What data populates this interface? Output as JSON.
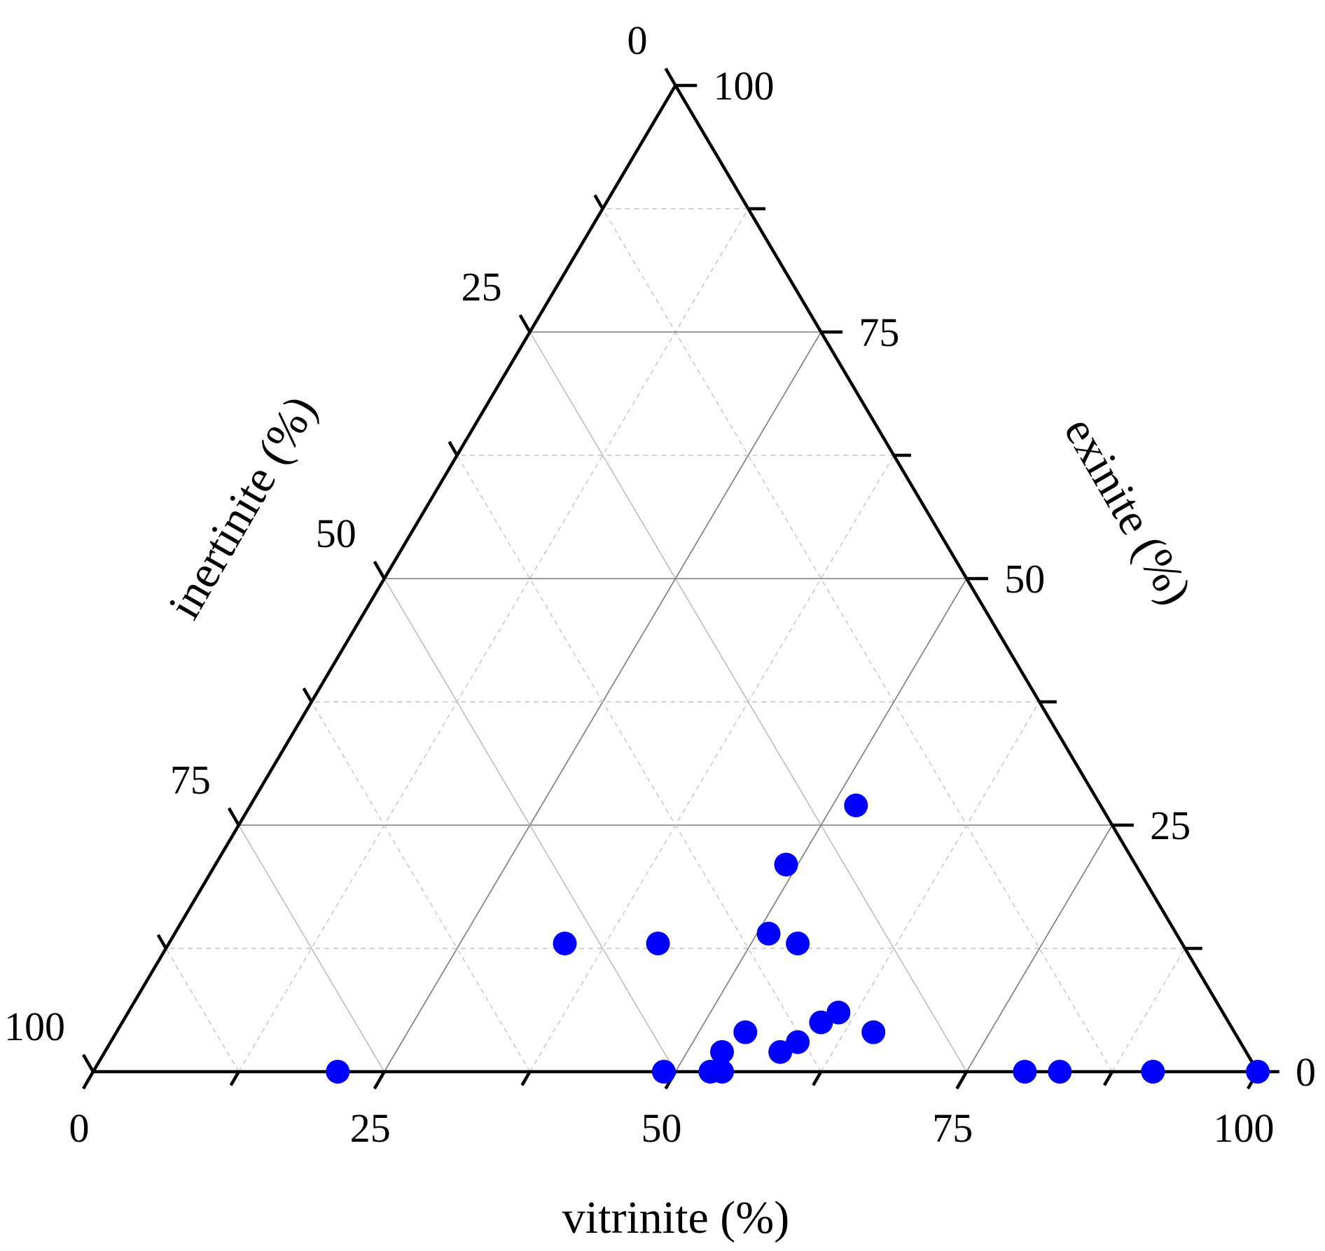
{
  "chart_data": {
    "type": "scatter",
    "subtype": "ternary",
    "axes": {
      "vitrinite": {
        "label": "vitrinite (%)",
        "ticks": [
          "0",
          "25",
          "50",
          "75",
          "100"
        ],
        "range": [
          0,
          100
        ],
        "side": "bottom"
      },
      "inertinite": {
        "label": "inertinite (%)",
        "ticks": [
          "0",
          "25",
          "50",
          "75",
          "100"
        ],
        "range": [
          0,
          100
        ],
        "side": "left"
      },
      "exinite": {
        "label": "exinite (%)",
        "ticks": [
          "0",
          "25",
          "50",
          "75",
          "100"
        ],
        "range": [
          0,
          100
        ],
        "side": "right"
      }
    },
    "grid": true,
    "legend": "none",
    "marker_color": "#0000ff",
    "points": [
      {
        "vitrinite": 21,
        "inertinite": 79,
        "exinite": 0
      },
      {
        "vitrinite": 49,
        "inertinite": 51,
        "exinite": 0
      },
      {
        "vitrinite": 53,
        "inertinite": 47,
        "exinite": 0
      },
      {
        "vitrinite": 54,
        "inertinite": 46,
        "exinite": 0
      },
      {
        "vitrinite": 80,
        "inertinite": 20,
        "exinite": 0
      },
      {
        "vitrinite": 83,
        "inertinite": 17,
        "exinite": 0
      },
      {
        "vitrinite": 91,
        "inertinite": 9,
        "exinite": 0
      },
      {
        "vitrinite": 100,
        "inertinite": 0,
        "exinite": 0
      },
      {
        "vitrinite": 53,
        "inertinite": 45,
        "exinite": 2
      },
      {
        "vitrinite": 54,
        "inertinite": 42,
        "exinite": 4
      },
      {
        "vitrinite": 58,
        "inertinite": 40,
        "exinite": 2
      },
      {
        "vitrinite": 59,
        "inertinite": 38,
        "exinite": 3
      },
      {
        "vitrinite": 60,
        "inertinite": 35,
        "exinite": 5
      },
      {
        "vitrinite": 61,
        "inertinite": 33,
        "exinite": 6
      },
      {
        "vitrinite": 65,
        "inertinite": 31,
        "exinite": 4
      },
      {
        "vitrinite": 34,
        "inertinite": 53,
        "exinite": 13
      },
      {
        "vitrinite": 42,
        "inertinite": 45,
        "exinite": 13
      },
      {
        "vitrinite": 51,
        "inertinite": 35,
        "exinite": 14
      },
      {
        "vitrinite": 54,
        "inertinite": 33,
        "exinite": 13
      },
      {
        "vitrinite": 49,
        "inertinite": 30,
        "exinite": 21
      },
      {
        "vitrinite": 52,
        "inertinite": 21,
        "exinite": 27
      }
    ]
  }
}
